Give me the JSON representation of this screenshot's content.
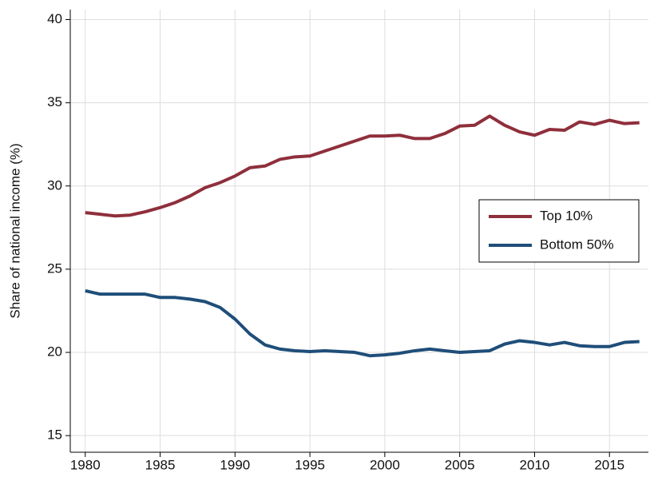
{
  "chart_data": {
    "type": "line",
    "y_label": "Share of national income (%)",
    "x": [
      1980,
      1981,
      1982,
      1983,
      1984,
      1985,
      1986,
      1987,
      1988,
      1989,
      1990,
      1991,
      1992,
      1993,
      1994,
      1995,
      1996,
      1997,
      1998,
      1999,
      2000,
      2001,
      2002,
      2003,
      2004,
      2005,
      2006,
      2007,
      2008,
      2009,
      2010,
      2011,
      2012,
      2013,
      2014,
      2015,
      2016,
      2017
    ],
    "series": [
      {
        "name": "Top 10%",
        "color": "#8f2f3c",
        "values": [
          28.4,
          28.3,
          28.2,
          28.25,
          28.45,
          28.7,
          29.0,
          29.4,
          29.9,
          30.2,
          30.6,
          31.1,
          31.2,
          31.6,
          31.75,
          31.8,
          32.1,
          32.4,
          32.7,
          33.0,
          33.0,
          33.05,
          32.85,
          32.85,
          33.15,
          33.6,
          33.65,
          34.2,
          33.65,
          33.25,
          33.05,
          33.4,
          33.35,
          33.85,
          33.7,
          33.95,
          33.75,
          33.8
        ]
      },
      {
        "name": "Bottom 50%",
        "color": "#1f4e79",
        "values": [
          23.7,
          23.5,
          23.5,
          23.5,
          23.5,
          23.3,
          23.3,
          23.2,
          23.05,
          22.7,
          22.0,
          21.1,
          20.45,
          20.2,
          20.1,
          20.05,
          20.1,
          20.05,
          20.0,
          19.8,
          19.85,
          19.95,
          20.1,
          20.2,
          20.1,
          20.0,
          20.05,
          20.1,
          20.5,
          20.7,
          20.6,
          20.45,
          20.6,
          20.4,
          20.35,
          20.35,
          20.6,
          20.65
        ]
      }
    ],
    "xlim": [
      1979,
      2017.6
    ],
    "xticks": [
      1980,
      1985,
      1990,
      1995,
      2000,
      2005,
      2010,
      2015
    ],
    "ylim": [
      14,
      40.6
    ],
    "yticks": [
      15,
      20,
      25,
      30,
      35,
      40
    ],
    "grid": true,
    "legend": "right"
  }
}
